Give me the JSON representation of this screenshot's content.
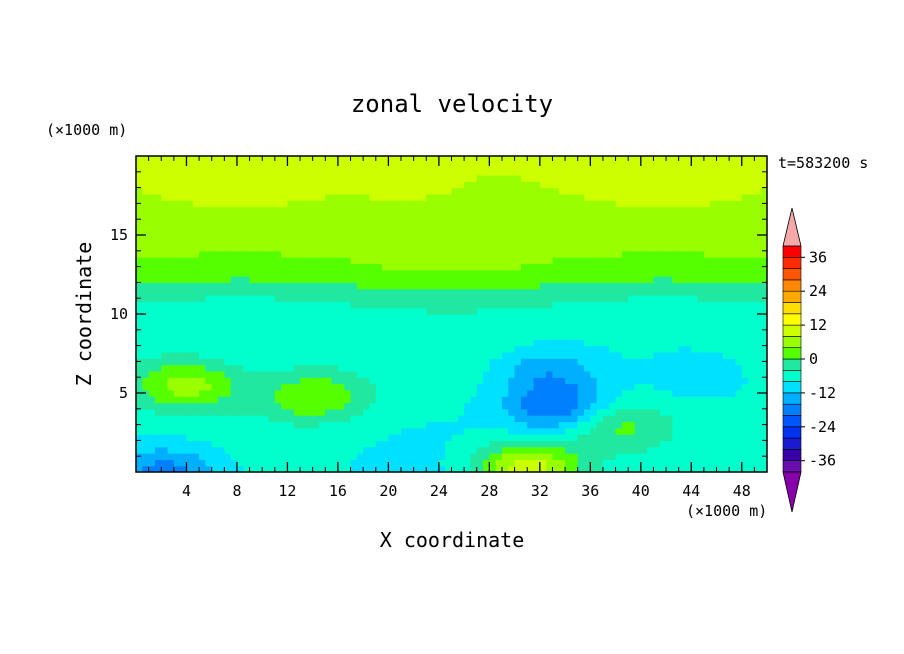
{
  "chart_data": {
    "type": "heatmap",
    "title": "zonal velocity",
    "xlabel": "X coordinate",
    "ylabel": "Z coordinate",
    "x_unit": "(×1000 m)",
    "y_unit": "(×1000 m)",
    "time_label": "t=583200 s",
    "xlim": [
      0,
      50
    ],
    "ylim": [
      0,
      20
    ],
    "x_ticks": [
      4,
      8,
      12,
      16,
      20,
      24,
      28,
      32,
      36,
      40,
      44,
      48
    ],
    "y_ticks": [
      5,
      10,
      15
    ],
    "colorbar": {
      "levels": [
        -40,
        -36,
        -32,
        -28,
        -24,
        -20,
        -16,
        -12,
        -8,
        -4,
        0,
        4,
        8,
        12,
        16,
        20,
        24,
        28,
        32,
        36,
        40
      ],
      "tick_labels": [
        "36",
        "24",
        "12",
        "0",
        "-12",
        "-24",
        "-36"
      ],
      "tick_values": [
        36,
        24,
        12,
        0,
        -12,
        -24,
        -36
      ],
      "colors": [
        "#6a0dad",
        "#3a00a8",
        "#1a1ad0",
        "#0030f0",
        "#0055ff",
        "#0080ff",
        "#00b0ff",
        "#00e0ff",
        "#00ffcc",
        "#20e8a0",
        "#55ff00",
        "#99ff00",
        "#ccff00",
        "#ffff00",
        "#ffdd00",
        "#ffaa00",
        "#ff8800",
        "#ff5500",
        "#ff2a00",
        "#ff0000"
      ],
      "under_color": "#8800aa",
      "over_color": "#f4a8a8"
    },
    "features": [
      {
        "x": 32.5,
        "z": 6.5,
        "value": -14,
        "description": "cyan jet core"
      },
      {
        "x": 33.5,
        "z": 4.1,
        "value": -20,
        "description": "blue minimum"
      },
      {
        "x": 4.0,
        "z": 5.5,
        "value": 6,
        "description": "green-yellow maximum"
      },
      {
        "x": 31.0,
        "z": 0.3,
        "value": 10,
        "description": "yellow surface max"
      },
      {
        "x": 22.0,
        "z": 18.5,
        "value": 10,
        "description": "upper yellow band"
      },
      {
        "x": 44.5,
        "z": 6.0,
        "value": -10,
        "description": "cyan east"
      },
      {
        "x": 14.0,
        "z": 4.8,
        "value": 4,
        "description": "green blob"
      },
      {
        "x": 38.0,
        "z": 3.0,
        "value": 2,
        "description": "green blob east"
      },
      {
        "x": 2.5,
        "z": 0.0,
        "value": -18,
        "description": "blue surface"
      }
    ]
  }
}
